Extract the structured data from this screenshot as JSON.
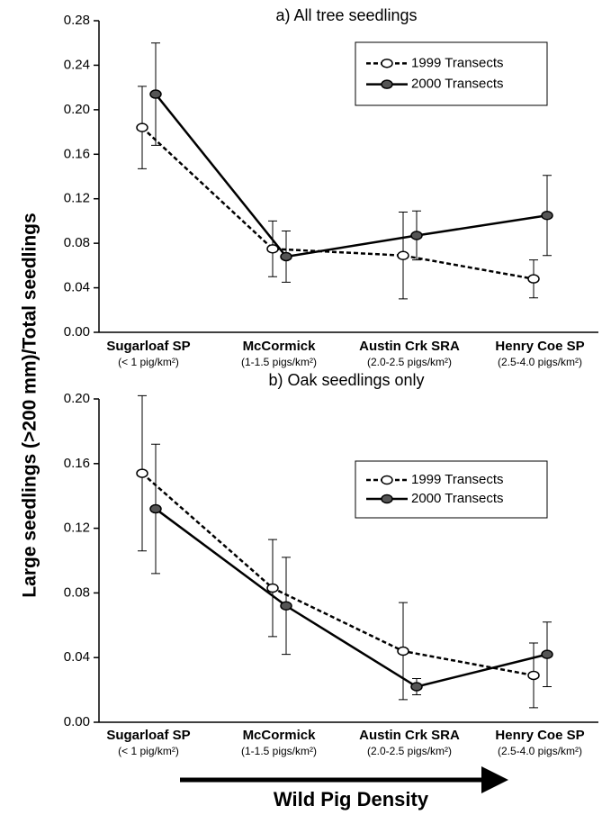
{
  "y_label": "Large seedlings (>200 mm)/Total seedlings",
  "x_label": "Wild Pig Density",
  "chart_data": [
    {
      "type": "line",
      "title": "a) All tree seedlings",
      "categories": [
        "Sugarloaf SP",
        "McCormick",
        "Austin Crk SRA",
        "Henry Coe SP"
      ],
      "category_notes": [
        "(< 1 pig/km²)",
        "(1-1.5 pigs/km²)",
        "(2.0-2.5 pigs/km²)",
        "(2.5-4.0 pigs/km²)"
      ],
      "series": [
        {
          "name": "1999 Transects",
          "color": "#000000",
          "style": "dashed",
          "marker": "open",
          "values": [
            0.184,
            0.075,
            0.069,
            0.048
          ],
          "errors": [
            0.037,
            0.025,
            0.039,
            0.017
          ]
        },
        {
          "name": "2000 Transects",
          "color": "#000000",
          "style": "solid",
          "marker": "filled",
          "values": [
            0.214,
            0.068,
            0.087,
            0.105
          ],
          "errors": [
            0.046,
            0.023,
            0.022,
            0.036
          ]
        }
      ],
      "ylim": [
        0,
        0.28
      ],
      "yticks": [
        {
          "value": 0,
          "label": "0.00"
        },
        0.04,
        0.08,
        0.12,
        0.16,
        {
          "value": 0.2,
          "label": "0.20"
        },
        0.24,
        0.28
      ],
      "legend": "upper right"
    },
    {
      "type": "line",
      "title": "b) Oak seedlings only",
      "categories": [
        "Sugarloaf SP",
        "McCormick",
        "Austin Crk SRA",
        "Henry Coe SP"
      ],
      "category_notes": [
        "(< 1 pig/km²)",
        "(1-1.5 pigs/km²)",
        "(2.0-2.5 pigs/km²)",
        "(2.5-4.0 pigs/km²)"
      ],
      "series": [
        {
          "name": "1999 Transects",
          "color": "#000000",
          "style": "dashed",
          "marker": "open",
          "values": [
            0.154,
            0.083,
            0.044,
            0.029
          ],
          "errors": [
            0.048,
            0.03,
            0.03,
            0.02
          ]
        },
        {
          "name": "2000 Transects",
          "color": "#000000",
          "style": "solid",
          "marker": "filled",
          "values": [
            0.132,
            0.072,
            0.022,
            0.042
          ],
          "errors": [
            0.04,
            0.03,
            0.005,
            0.02
          ]
        }
      ],
      "ylim": [
        0,
        0.2
      ],
      "yticks": [
        {
          "value": 0,
          "label": "0.00"
        },
        0.04,
        0.08,
        0.12,
        0.16,
        {
          "value": 0.2,
          "label": "0.20"
        }
      ],
      "legend": "upper right"
    }
  ]
}
